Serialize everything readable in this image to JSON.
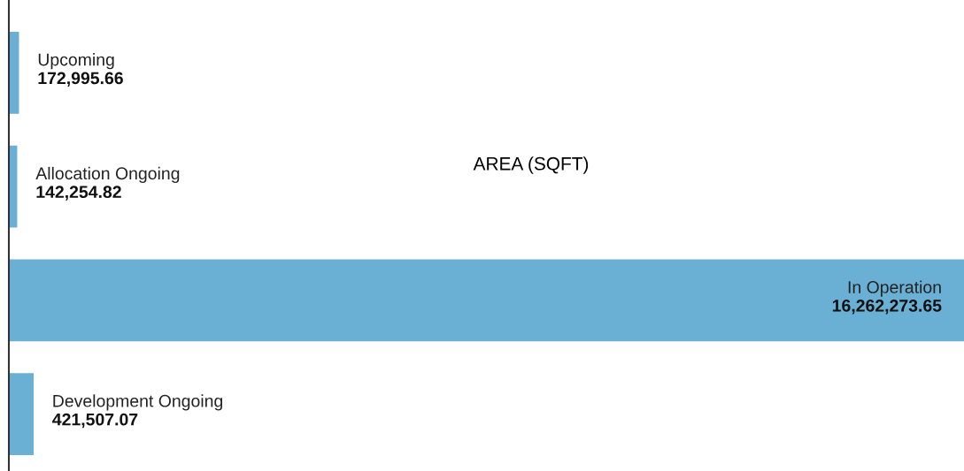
{
  "chart_data": {
    "type": "bar",
    "orientation": "horizontal",
    "title": "AREA (SQFT)",
    "categories": [
      "Upcoming",
      "Allocation Ongoing",
      "In Operation",
      "Development Ongoing"
    ],
    "values": [
      172995.66,
      142254.82,
      16262273.65,
      421507.07
    ],
    "value_labels": [
      "172,995.66",
      "142,254.82",
      "16,262,273.65",
      "421,507.07"
    ],
    "color": "#6aafd4"
  }
}
